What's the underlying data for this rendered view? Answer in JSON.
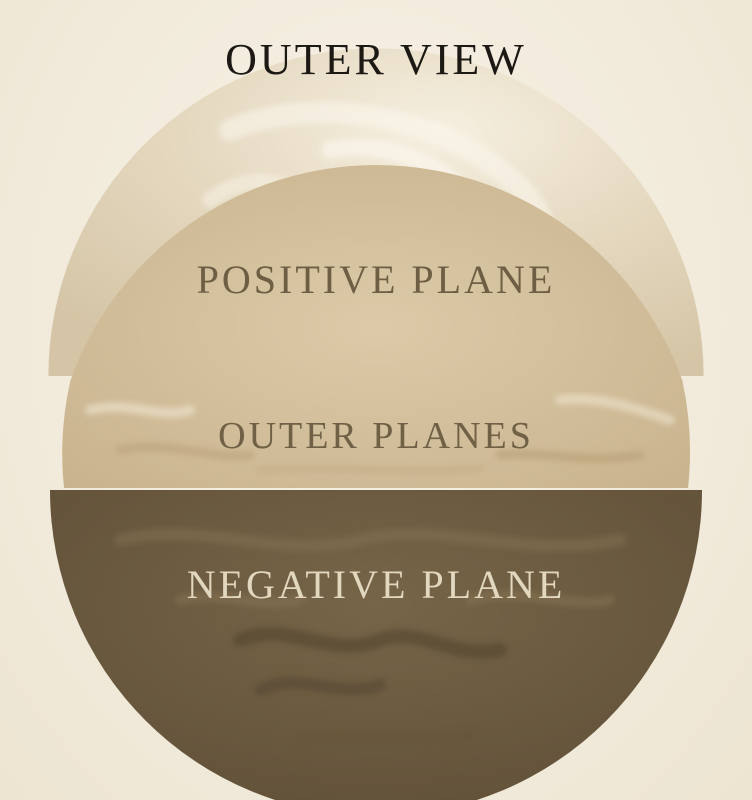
{
  "title": "OUTER VIEW",
  "planes": {
    "positive": {
      "label": "POSITIVE PLANE",
      "color": "#e4d7bd"
    },
    "outer": {
      "label": "OUTER PLANES",
      "color": "#d3c19d"
    },
    "negative": {
      "label": "NEGATIVE PLANE",
      "color": "#6c5b40"
    }
  },
  "colors": {
    "background": "#f3ede0",
    "title": "#1c1814",
    "positive_label": "#6e5f44",
    "outer_label": "#6f6046",
    "negative_label": "#e2d7bf"
  }
}
